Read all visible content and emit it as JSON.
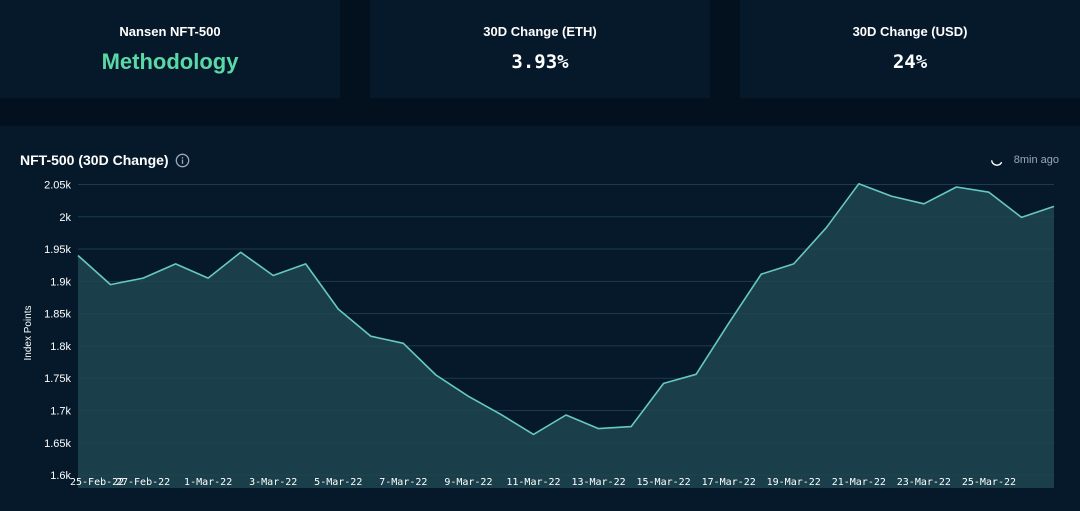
{
  "cards": [
    {
      "title": "Nansen NFT-500",
      "link": "Methodology"
    },
    {
      "title": "30D Change (ETH)",
      "value": "3.93%"
    },
    {
      "title": "30D Change (USD)",
      "value": "24%"
    }
  ],
  "panel": {
    "title": "NFT-500 (30D Change)",
    "info_icon": "info-icon",
    "updated": "8min ago",
    "refresh_icon": "spinner-icon"
  },
  "colors": {
    "background": "#03111f",
    "panel": "#05192b",
    "accent": "#5ad8a6",
    "line": "#66c9c1",
    "area": "#1f4650",
    "grid": "#1c3a52"
  },
  "chart_data": {
    "type": "area",
    "title": "NFT-500 (30D Change)",
    "xlabel": "",
    "ylabel": "Index Points",
    "ylim": [
      1580,
      2060
    ],
    "grid": true,
    "y_ticks": [
      1600,
      1650,
      1700,
      1750,
      1800,
      1850,
      1900,
      1950,
      2000,
      2050
    ],
    "y_tick_labels": [
      "1.6k",
      "1.65k",
      "1.7k",
      "1.75k",
      "1.8k",
      "1.85k",
      "1.9k",
      "1.95k",
      "2k",
      "2.05k"
    ],
    "x_tick_labels": [
      "25-Feb-22",
      "27-Feb-22",
      "1-Mar-22",
      "3-Mar-22",
      "5-Mar-22",
      "7-Mar-22",
      "9-Mar-22",
      "11-Mar-22",
      "13-Mar-22",
      "15-Mar-22",
      "17-Mar-22",
      "19-Mar-22",
      "21-Mar-22",
      "23-Mar-22",
      "25-Mar-22"
    ],
    "x": [
      "25-Feb-22",
      "26-Feb-22",
      "27-Feb-22",
      "28-Feb-22",
      "1-Mar-22",
      "2-Mar-22",
      "3-Mar-22",
      "4-Mar-22",
      "5-Mar-22",
      "6-Mar-22",
      "7-Mar-22",
      "8-Mar-22",
      "9-Mar-22",
      "10-Mar-22",
      "11-Mar-22",
      "12-Mar-22",
      "13-Mar-22",
      "14-Mar-22",
      "15-Mar-22",
      "16-Mar-22",
      "17-Mar-22",
      "18-Mar-22",
      "19-Mar-22",
      "20-Mar-22",
      "21-Mar-22",
      "22-Mar-22",
      "23-Mar-22",
      "24-Mar-22",
      "25-Mar-22",
      "26-Mar-22",
      "27-Mar-22"
    ],
    "series": [
      {
        "name": "",
        "values": [
          1940,
          1895,
          1905,
          1927,
          1905,
          1945,
          1909,
          1927,
          1857,
          1815,
          1804,
          1755,
          1722,
          1694,
          1663,
          1693,
          1672,
          1675,
          1742,
          1756,
          1835,
          1911,
          1927,
          1983,
          2051,
          2032,
          2020,
          2046,
          2038,
          1999,
          2016
        ]
      }
    ]
  }
}
